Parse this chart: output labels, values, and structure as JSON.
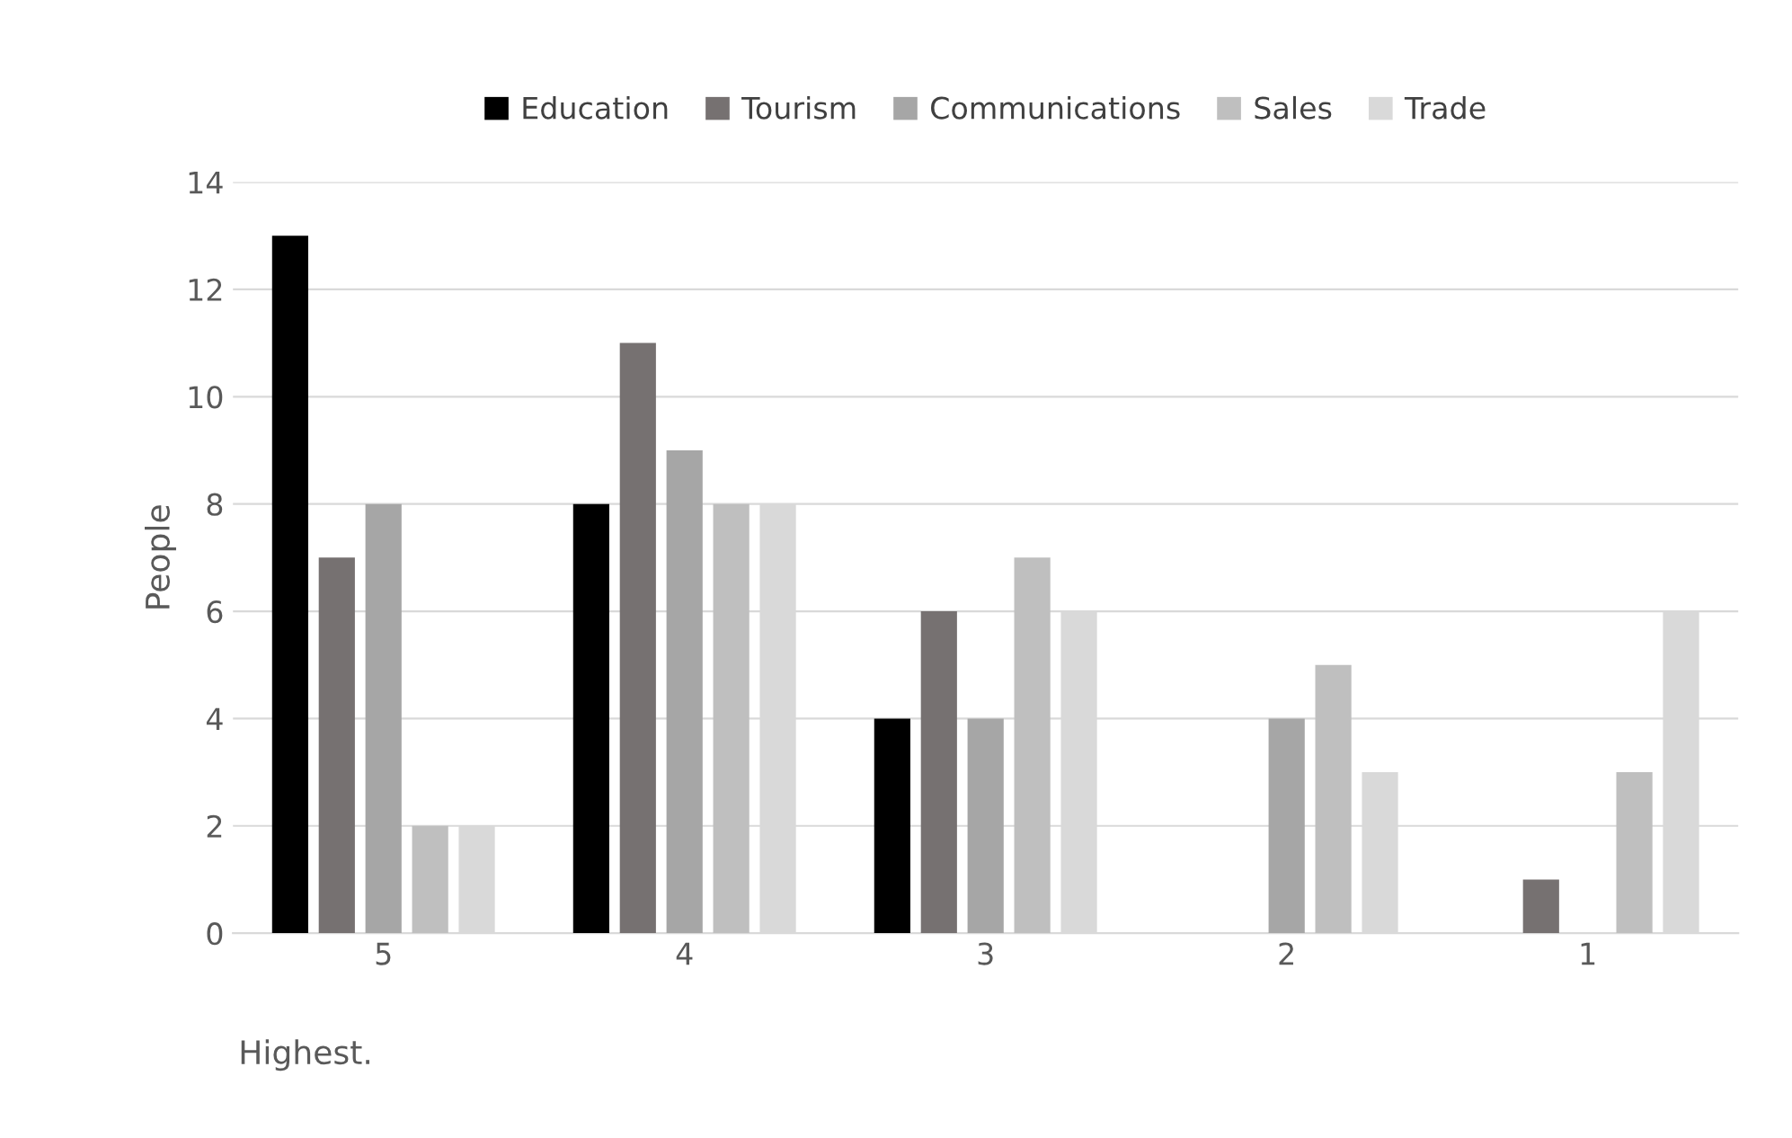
{
  "chart_data": {
    "type": "bar",
    "ylabel": "People",
    "categories": [
      "5",
      "4",
      "3",
      "2",
      "1"
    ],
    "series": [
      {
        "name": "Education",
        "color": "#000000",
        "values": [
          13,
          8,
          4,
          0,
          0
        ]
      },
      {
        "name": "Tourism",
        "color": "#767171",
        "values": [
          7,
          11,
          6,
          0,
          1
        ]
      },
      {
        "name": "Communications",
        "color": "#a6a6a6",
        "values": [
          8,
          9,
          4,
          4,
          0
        ]
      },
      {
        "name": "Sales",
        "color": "#bfbfbf",
        "values": [
          2,
          8,
          7,
          5,
          3
        ]
      },
      {
        "name": "Trade",
        "color": "#d9d9d9",
        "values": [
          2,
          8,
          6,
          3,
          6
        ]
      }
    ],
    "ylim": [
      0,
      14
    ],
    "yticks": [
      0,
      2,
      4,
      6,
      8,
      10,
      12,
      14
    ],
    "grid": "y",
    "legend": "top",
    "annotations": [
      "Highest."
    ]
  }
}
